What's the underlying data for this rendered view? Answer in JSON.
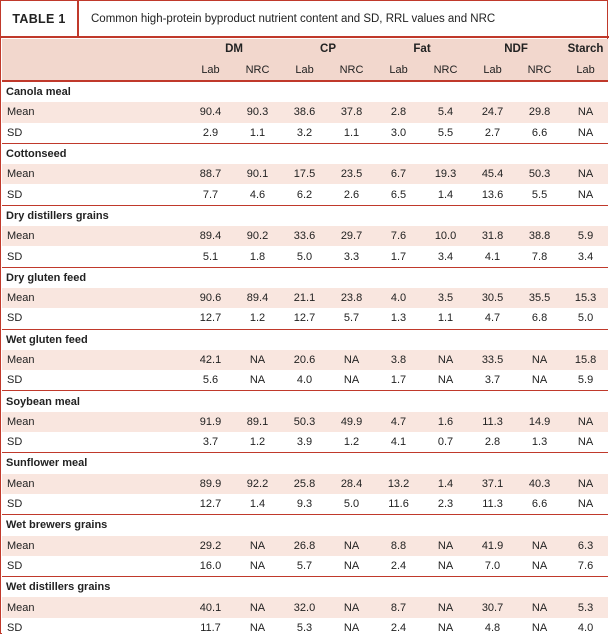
{
  "table_label": "TABLE 1",
  "caption": "Common high-protein byproduct nutrient content and SD, RRL values and NRC",
  "headers": {
    "groups": [
      "DM",
      "CP",
      "Fat",
      "NDF",
      "Starch"
    ],
    "subs": [
      "Lab",
      "NRC",
      "Lab",
      "NRC",
      "Lab",
      "NRC",
      "Lab",
      "NRC",
      "Lab"
    ]
  },
  "feeds": [
    {
      "name": "Canola meal",
      "mean": {
        "label": "Mean",
        "values": [
          "90.4",
          "90.3",
          "38.6",
          "37.8",
          "2.8",
          "5.4",
          "24.7",
          "29.8",
          "NA"
        ]
      },
      "sd": {
        "label": "SD",
        "values": [
          "2.9",
          "1.1",
          "3.2",
          "1.1",
          "3.0",
          "5.5",
          "2.7",
          "6.6",
          "NA"
        ]
      }
    },
    {
      "name": "Cottonseed",
      "mean": {
        "label": "Mean",
        "values": [
          "88.7",
          "90.1",
          "17.5",
          "23.5",
          "6.7",
          "19.3",
          "45.4",
          "50.3",
          "NA"
        ]
      },
      "sd": {
        "label": "SD",
        "values": [
          "7.7",
          "4.6",
          "6.2",
          "2.6",
          "6.5",
          "1.4",
          "13.6",
          "5.5",
          "NA"
        ]
      }
    },
    {
      "name": "Dry distillers grains",
      "mean": {
        "label": "Mean",
        "values": [
          "89.4",
          "90.2",
          "33.6",
          "29.7",
          "7.6",
          "10.0",
          "31.8",
          "38.8",
          "5.9"
        ]
      },
      "sd": {
        "label": "SD",
        "values": [
          "5.1",
          "1.8",
          "5.0",
          "3.3",
          "1.7",
          "3.4",
          "4.1",
          "7.8",
          "3.4"
        ]
      }
    },
    {
      "name": "Dry gluten feed",
      "mean": {
        "label": "Mean",
        "values": [
          "90.6",
          "89.4",
          "21.1",
          "23.8",
          "4.0",
          "3.5",
          "30.5",
          "35.5",
          "15.3"
        ]
      },
      "sd": {
        "label": "SD",
        "values": [
          "12.7",
          "1.2",
          "12.7",
          "5.7",
          "1.3",
          "1.1",
          "4.7",
          "6.8",
          "5.0"
        ]
      }
    },
    {
      "name": "Wet gluten feed",
      "mean": {
        "label": "Mean",
        "values": [
          "42.1",
          "NA",
          "20.6",
          "NA",
          "3.8",
          "NA",
          "33.5",
          "NA",
          "15.8"
        ]
      },
      "sd": {
        "label": "SD",
        "values": [
          "5.6",
          "NA",
          "4.0",
          "NA",
          "1.7",
          "NA",
          "3.7",
          "NA",
          "5.9"
        ]
      }
    },
    {
      "name": "Soybean meal",
      "mean": {
        "label": "Mean",
        "values": [
          "91.9",
          "89.1",
          "50.3",
          "49.9",
          "4.7",
          "1.6",
          "11.3",
          "14.9",
          "NA"
        ]
      },
      "sd": {
        "label": "SD",
        "values": [
          "3.7",
          "1.2",
          "3.9",
          "1.2",
          "4.1",
          "0.7",
          "2.8",
          "1.3",
          "NA"
        ]
      }
    },
    {
      "name": "Sunflower meal",
      "mean": {
        "label": "Mean",
        "values": [
          "89.9",
          "92.2",
          "25.8",
          "28.4",
          "13.2",
          "1.4",
          "37.1",
          "40.3",
          "NA"
        ]
      },
      "sd": {
        "label": "SD",
        "values": [
          "12.7",
          "1.4",
          "9.3",
          "5.0",
          "11.6",
          "2.3",
          "11.3",
          "6.6",
          "NA"
        ]
      }
    },
    {
      "name": "Wet brewers grains",
      "mean": {
        "label": "Mean",
        "values": [
          "29.2",
          "NA",
          "26.8",
          "NA",
          "8.8",
          "NA",
          "41.9",
          "NA",
          "6.3"
        ]
      },
      "sd": {
        "label": "SD",
        "values": [
          "16.0",
          "NA",
          "5.7",
          "NA",
          "2.4",
          "NA",
          "7.0",
          "NA",
          "7.6"
        ]
      }
    },
    {
      "name": "Wet distillers grains",
      "mean": {
        "label": "Mean",
        "values": [
          "40.1",
          "NA",
          "32.0",
          "NA",
          "8.7",
          "NA",
          "30.7",
          "NA",
          "5.3"
        ]
      },
      "sd": {
        "label": "SD",
        "values": [
          "11.7",
          "NA",
          "5.3",
          "NA",
          "2.4",
          "NA",
          "4.8",
          "NA",
          "4.0"
        ]
      }
    }
  ]
}
